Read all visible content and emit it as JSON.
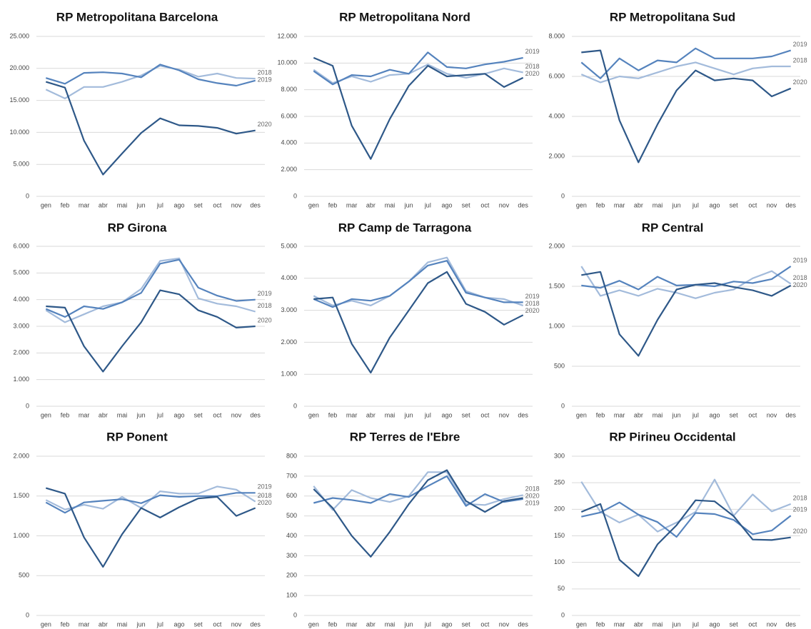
{
  "chart_data": [
    {
      "type": "line",
      "title": "RP Metropolitana Barcelona",
      "categories": [
        "gen",
        "feb",
        "mar",
        "abr",
        "mai",
        "jun",
        "jul",
        "ago",
        "set",
        "oct",
        "nov",
        "des"
      ],
      "series": [
        {
          "name": "2018",
          "color": "#a3bbdb",
          "values": [
            16700,
            15300,
            17100,
            17100,
            17900,
            18900,
            20400,
            19800,
            18700,
            19200,
            18500,
            18400
          ]
        },
        {
          "name": "2019",
          "color": "#5583bd",
          "values": [
            18500,
            17600,
            19300,
            19400,
            19200,
            18600,
            20600,
            19700,
            18300,
            17700,
            17300,
            18100
          ]
        },
        {
          "name": "2020",
          "color": "#2e5888",
          "values": [
            17900,
            17000,
            8700,
            3400,
            6700,
            9900,
            12200,
            11100,
            11000,
            10700,
            9800,
            10300
          ]
        }
      ],
      "ylim": [
        0,
        25000
      ],
      "yticks": [
        0,
        {
          "value": 5000,
          "label": "5.000"
        },
        {
          "value": 10000,
          "label": "10.000"
        },
        {
          "value": 15000,
          "label": "15.000"
        },
        {
          "value": 20000,
          "label": "20.000"
        },
        {
          "value": 25000,
          "label": "25.000"
        }
      ],
      "grid": true
    },
    {
      "type": "line",
      "title": "RP  Metropolitana Nord",
      "categories": [
        "gen",
        "feb",
        "mar",
        "abr",
        "mai",
        "jun",
        "jul",
        "ago",
        "set",
        "oct",
        "nov",
        "des"
      ],
      "series": [
        {
          "name": "2018",
          "color": "#a3bbdb",
          "values": [
            9500,
            8500,
            9000,
            8600,
            9100,
            9200,
            9900,
            9200,
            8900,
            9200,
            9600,
            9300
          ]
        },
        {
          "name": "2019",
          "color": "#5583bd",
          "values": [
            9400,
            8400,
            9100,
            9000,
            9500,
            9200,
            10800,
            9700,
            9600,
            9900,
            10100,
            10400
          ]
        },
        {
          "name": "2020",
          "color": "#2e5888",
          "values": [
            10400,
            9800,
            5300,
            2800,
            5800,
            8300,
            9800,
            9000,
            9100,
            9200,
            8200,
            8900
          ]
        }
      ],
      "ylim": [
        0,
        12000
      ],
      "yticks": [
        0,
        {
          "value": 2000,
          "label": "2.000"
        },
        {
          "value": 4000,
          "label": "4.000"
        },
        {
          "value": 6000,
          "label": "6.000"
        },
        {
          "value": 8000,
          "label": "8.000"
        },
        {
          "value": 10000,
          "label": "10.000"
        },
        {
          "value": 12000,
          "label": "12.000"
        }
      ],
      "grid": true
    },
    {
      "type": "line",
      "title": "RP Metropolitana Sud",
      "categories": [
        "gen",
        "feb",
        "mar",
        "abr",
        "mai",
        "jun",
        "jul",
        "ago",
        "set",
        "oct",
        "nov",
        "des"
      ],
      "series": [
        {
          "name": "2018",
          "color": "#a3bbdb",
          "values": [
            6100,
            5700,
            6000,
            5900,
            6200,
            6500,
            6700,
            6400,
            6100,
            6400,
            6500,
            6500
          ]
        },
        {
          "name": "2019",
          "color": "#5583bd",
          "values": [
            6700,
            5900,
            6900,
            6300,
            6800,
            6700,
            7400,
            6900,
            6900,
            6900,
            7000,
            7300
          ]
        },
        {
          "name": "2020",
          "color": "#2e5888",
          "values": [
            7200,
            7300,
            3800,
            1700,
            3600,
            5300,
            6300,
            5800,
            5900,
            5800,
            5000,
            5400
          ]
        }
      ],
      "ylim": [
        0,
        8000
      ],
      "yticks": [
        0,
        {
          "value": 2000,
          "label": "2.000"
        },
        {
          "value": 4000,
          "label": "4.000"
        },
        {
          "value": 6000,
          "label": "6.000"
        },
        {
          "value": 8000,
          "label": "8.000"
        }
      ],
      "grid": true
    },
    {
      "type": "line",
      "title": "RP Girona",
      "categories": [
        "gen",
        "feb",
        "mar",
        "abr",
        "mai",
        "jun",
        "jul",
        "ago",
        "set",
        "oct",
        "nov",
        "des"
      ],
      "series": [
        {
          "name": "2018",
          "color": "#a3bbdb",
          "values": [
            3600,
            3150,
            3450,
            3750,
            3900,
            4400,
            5450,
            5550,
            4050,
            3850,
            3750,
            3550
          ]
        },
        {
          "name": "2019",
          "color": "#5583bd",
          "values": [
            3650,
            3350,
            3750,
            3650,
            3900,
            4250,
            5350,
            5500,
            4450,
            4150,
            3950,
            4000
          ]
        },
        {
          "name": "2020",
          "color": "#2e5888",
          "values": [
            3750,
            3700,
            2250,
            1300,
            2250,
            3150,
            4350,
            4200,
            3600,
            3350,
            2950,
            3000
          ]
        }
      ],
      "ylim": [
        0,
        6000
      ],
      "yticks": [
        0,
        {
          "value": 1000,
          "label": "1.000"
        },
        {
          "value": 2000,
          "label": "2.000"
        },
        {
          "value": 3000,
          "label": "3.000"
        },
        {
          "value": 4000,
          "label": "4.000"
        },
        {
          "value": 5000,
          "label": "5.000"
        },
        {
          "value": 6000,
          "label": "6.000"
        }
      ],
      "grid": true
    },
    {
      "type": "line",
      "title": "RP Camp de Tarragona",
      "categories": [
        "gen",
        "feb",
        "mar",
        "abr",
        "mai",
        "jun",
        "jul",
        "ago",
        "set",
        "oct",
        "nov",
        "des"
      ],
      "series": [
        {
          "name": "2018",
          "color": "#a3bbdb",
          "values": [
            3450,
            3150,
            3300,
            3150,
            3450,
            3900,
            4500,
            4650,
            3600,
            3400,
            3350,
            3150
          ]
        },
        {
          "name": "2019",
          "color": "#5583bd",
          "values": [
            3350,
            3100,
            3350,
            3300,
            3450,
            3900,
            4400,
            4550,
            3550,
            3400,
            3250,
            3250
          ]
        },
        {
          "name": "2020",
          "color": "#2e5888",
          "values": [
            3350,
            3400,
            1950,
            1050,
            2150,
            3000,
            3850,
            4200,
            3200,
            2950,
            2550,
            2850
          ]
        }
      ],
      "ylim": [
        0,
        5000
      ],
      "yticks": [
        0,
        {
          "value": 1000,
          "label": "1.000"
        },
        {
          "value": 2000,
          "label": "2.000"
        },
        {
          "value": 3000,
          "label": "3.000"
        },
        {
          "value": 4000,
          "label": "4.000"
        },
        {
          "value": 5000,
          "label": "5.000"
        }
      ],
      "grid": true
    },
    {
      "type": "line",
      "title": "RP Central",
      "categories": [
        "gen",
        "feb",
        "mar",
        "abr",
        "mai",
        "jun",
        "jul",
        "ago",
        "set",
        "oct",
        "nov",
        "des"
      ],
      "series": [
        {
          "name": "2018",
          "color": "#a3bbdb",
          "values": [
            1750,
            1380,
            1450,
            1380,
            1470,
            1420,
            1350,
            1420,
            1460,
            1600,
            1690,
            1530
          ]
        },
        {
          "name": "2019",
          "color": "#5583bd",
          "values": [
            1510,
            1480,
            1570,
            1460,
            1620,
            1510,
            1520,
            1500,
            1560,
            1540,
            1590,
            1750
          ]
        },
        {
          "name": "2020",
          "color": "#2e5888",
          "values": [
            1640,
            1680,
            900,
            630,
            1080,
            1460,
            1520,
            1540,
            1490,
            1450,
            1380,
            1510
          ]
        }
      ],
      "ylim": [
        0,
        2000
      ],
      "yticks": [
        0,
        500,
        {
          "value": 1000,
          "label": "1.000"
        },
        {
          "value": 1500,
          "label": "1.500"
        },
        {
          "value": 2000,
          "label": "2.000"
        }
      ],
      "grid": true
    },
    {
      "type": "line",
      "title": "RP Ponent",
      "categories": [
        "gen",
        "feb",
        "mar",
        "abr",
        "mai",
        "jun",
        "jul",
        "ago",
        "set",
        "oct",
        "nov",
        "des"
      ],
      "series": [
        {
          "name": "2018",
          "color": "#a3bbdb",
          "values": [
            1450,
            1330,
            1390,
            1340,
            1490,
            1350,
            1560,
            1530,
            1530,
            1620,
            1580,
            1430
          ]
        },
        {
          "name": "2019",
          "color": "#5583bd",
          "values": [
            1420,
            1290,
            1420,
            1440,
            1460,
            1410,
            1510,
            1490,
            1500,
            1500,
            1540,
            1540
          ]
        },
        {
          "name": "2020",
          "color": "#2e5888",
          "values": [
            1600,
            1530,
            980,
            610,
            1020,
            1350,
            1230,
            1360,
            1470,
            1490,
            1250,
            1350
          ]
        }
      ],
      "ylim": [
        0,
        2000
      ],
      "yticks": [
        0,
        500,
        {
          "value": 1000,
          "label": "1.000"
        },
        {
          "value": 1500,
          "label": "1.500"
        },
        {
          "value": 2000,
          "label": "2.000"
        }
      ],
      "grid": true
    },
    {
      "type": "line",
      "title": "RP Terres de l'Ebre",
      "categories": [
        "gen",
        "feb",
        "mar",
        "abr",
        "mai",
        "jun",
        "jul",
        "ago",
        "set",
        "oct",
        "nov",
        "des"
      ],
      "series": [
        {
          "name": "2018",
          "color": "#a3bbdb",
          "values": [
            650,
            530,
            630,
            590,
            570,
            600,
            720,
            720,
            560,
            555,
            585,
            605
          ]
        },
        {
          "name": "2019",
          "color": "#5583bd",
          "values": [
            565,
            590,
            580,
            565,
            610,
            595,
            650,
            700,
            550,
            610,
            570,
            585
          ]
        },
        {
          "name": "2020",
          "color": "#2e5888",
          "values": [
            635,
            540,
            400,
            295,
            420,
            560,
            680,
            730,
            575,
            520,
            575,
            590
          ]
        }
      ],
      "ylim": [
        0,
        800
      ],
      "yticks": [
        0,
        100,
        200,
        300,
        400,
        500,
        600,
        700,
        800
      ],
      "grid": true
    },
    {
      "type": "line",
      "title": "RP Pirineu Occidental",
      "categories": [
        "gen",
        "feb",
        "mar",
        "abr",
        "mai",
        "jun",
        "jul",
        "ago",
        "set",
        "oct",
        "nov",
        "des"
      ],
      "series": [
        {
          "name": "2018",
          "color": "#a3bbdb",
          "values": [
            252,
            195,
            175,
            190,
            158,
            175,
            195,
            256,
            188,
            228,
            196,
            210
          ]
        },
        {
          "name": "2019",
          "color": "#5583bd",
          "values": [
            186,
            194,
            213,
            190,
            176,
            148,
            193,
            191,
            180,
            153,
            160,
            188
          ]
        },
        {
          "name": "2020",
          "color": "#2e5888",
          "values": [
            195,
            210,
            105,
            74,
            134,
            170,
            217,
            215,
            187,
            143,
            142,
            147
          ]
        }
      ],
      "ylim": [
        0,
        300
      ],
      "yticks": [
        0,
        50,
        100,
        150,
        200,
        250,
        300
      ],
      "grid": true
    }
  ]
}
